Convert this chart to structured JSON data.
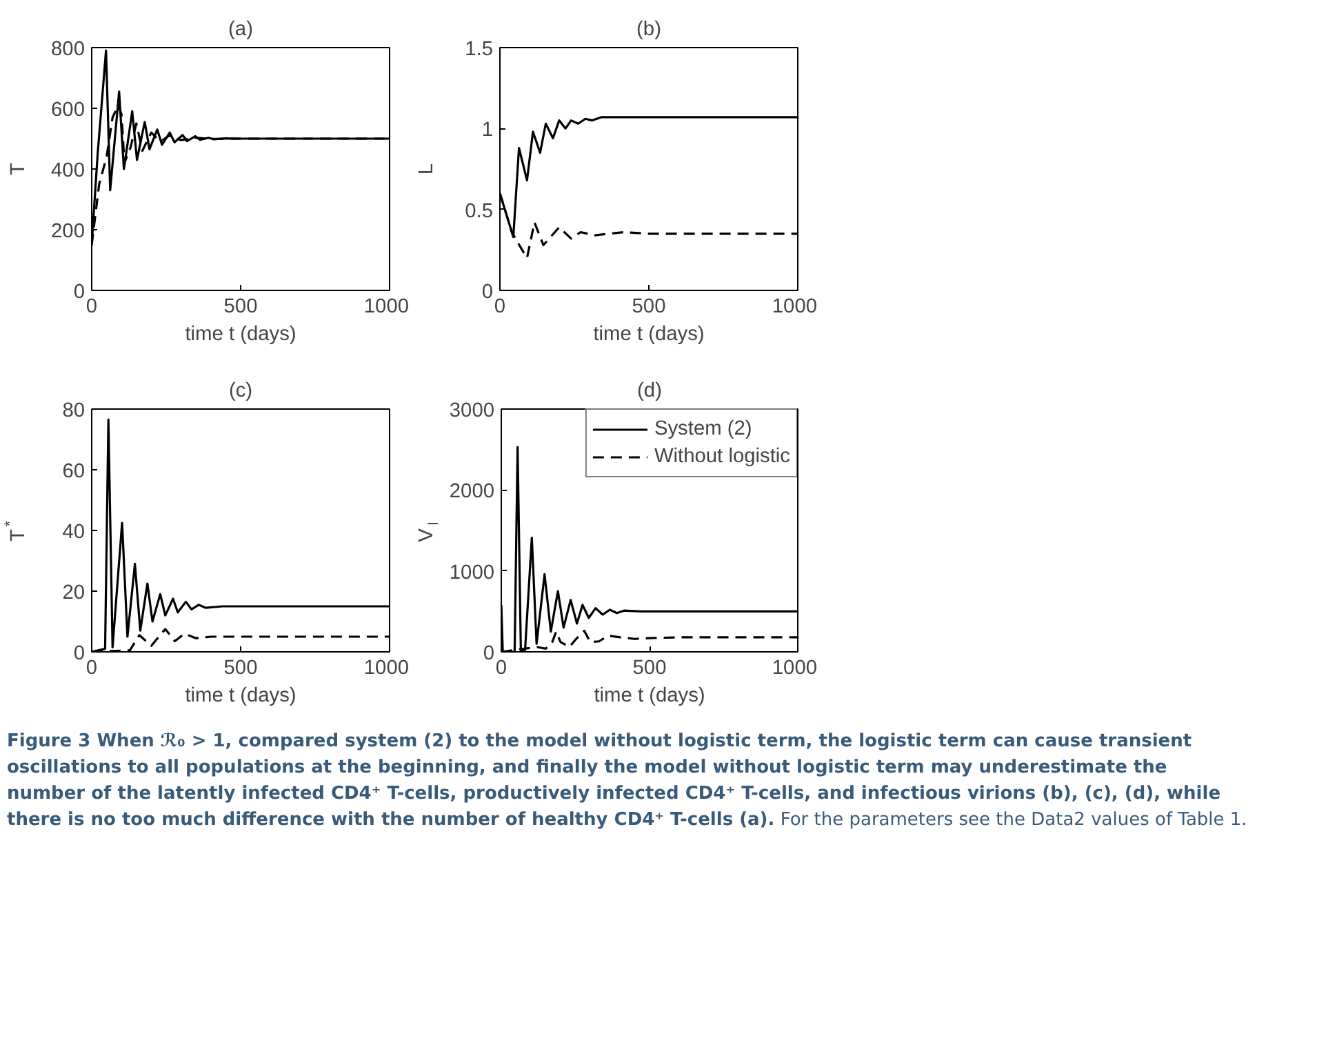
{
  "chart_data": [
    {
      "type": "line",
      "title": "(a)",
      "xlabel": "time t (days)",
      "ylabel": "T",
      "xlim": [
        0,
        1000
      ],
      "xticks": [
        0,
        500,
        1000
      ],
      "ylim": [
        0,
        800
      ],
      "yticks": [
        0,
        200,
        400,
        600,
        800
      ],
      "grid": false,
      "legend": false,
      "series": [
        {
          "color": "#000000",
          "line_style": "solid",
          "x": [
            0,
            20,
            48,
            62,
            92,
            108,
            136,
            152,
            178,
            194,
            220,
            236,
            262,
            278,
            305,
            320,
            348,
            364,
            392,
            410,
            450,
            500,
            1000
          ],
          "values": [
            150,
            450,
            790,
            330,
            655,
            400,
            590,
            430,
            555,
            465,
            530,
            480,
            520,
            488,
            512,
            492,
            508,
            496,
            503,
            498,
            501,
            500,
            500
          ]
        },
        {
          "color": "#000000",
          "line_style": "dashed",
          "x": [
            0,
            25,
            50,
            70,
            90,
            100,
            110,
            130,
            150,
            170,
            200,
            230,
            260,
            300,
            350,
            400,
            500,
            1000
          ],
          "values": [
            150,
            350,
            440,
            570,
            610,
            580,
            420,
            470,
            550,
            460,
            520,
            490,
            510,
            495,
            503,
            499,
            500,
            500
          ]
        }
      ]
    },
    {
      "type": "line",
      "title": "(b)",
      "xlabel": "time t (days)",
      "ylabel": "L",
      "xlim": [
        0,
        1000
      ],
      "xticks": [
        0,
        500,
        1000
      ],
      "ylim": [
        0,
        1.5
      ],
      "yticks": [
        0,
        0.5,
        1,
        1.5
      ],
      "grid": false,
      "legend": false,
      "series": [
        {
          "color": "#000000",
          "line_style": "solid",
          "x": [
            0,
            25,
            45,
            64,
            91,
            111,
            135,
            154,
            178,
            199,
            220,
            239,
            263,
            287,
            310,
            340,
            400,
            1000
          ],
          "values": [
            0.6,
            0.45,
            0.33,
            0.88,
            0.68,
            0.98,
            0.85,
            1.03,
            0.94,
            1.05,
            1.0,
            1.05,
            1.03,
            1.06,
            1.05,
            1.07,
            1.07,
            1.07
          ]
        },
        {
          "color": "#000000",
          "line_style": "dashed",
          "x": [
            0,
            40,
            65,
            91,
            116,
            146,
            199,
            239,
            271,
            318,
            414,
            500,
            1000
          ],
          "values": [
            0.6,
            0.36,
            0.28,
            0.2,
            0.42,
            0.28,
            0.39,
            0.32,
            0.36,
            0.34,
            0.36,
            0.35,
            0.35
          ]
        }
      ]
    },
    {
      "type": "line",
      "title": "(c)",
      "xlabel": "time t (days)",
      "ylabel": "T$^{*}$",
      "xlim": [
        0,
        1000
      ],
      "xticks": [
        0,
        500,
        1000
      ],
      "ylim": [
        0,
        80
      ],
      "yticks": [
        0,
        20,
        40,
        60,
        80
      ],
      "grid": false,
      "legend": false,
      "series": [
        {
          "color": "#000000",
          "line_style": "solid",
          "x": [
            0,
            45,
            56,
            70,
            102,
            120,
            145,
            163,
            187,
            204,
            230,
            247,
            273,
            289,
            316,
            335,
            359,
            383,
            439,
            1000
          ],
          "values": [
            0,
            1,
            76.5,
            1.5,
            42.5,
            5,
            29,
            7,
            22.5,
            10,
            19,
            12,
            17.5,
            13,
            16.5,
            14,
            15.5,
            14.5,
            15,
            15
          ]
        },
        {
          "color": "#000000",
          "line_style": "dashed",
          "x": [
            0,
            128,
            160,
            200,
            247,
            279,
            311,
            350,
            400,
            500,
            1000
          ],
          "values": [
            0,
            0.5,
            5.5,
            2,
            7.5,
            3.5,
            6,
            4.5,
            5,
            5,
            5
          ]
        }
      ]
    },
    {
      "type": "line",
      "title": "(d)",
      "xlabel": "time t (days)",
      "ylabel": "V$_{I}$",
      "xlim": [
        0,
        1000
      ],
      "xticks": [
        0,
        500,
        1000
      ],
      "ylim": [
        0,
        3000
      ],
      "yticks": [
        0,
        1000,
        2000,
        3000
      ],
      "grid": false,
      "legend": "top right",
      "annotations": [
        "Figure 3  When ℛ₀ > 1, compared system (2) to the model without logistic term, the logistic term can cause transient oscillations to all populations at the beginning, and finally the model without logistic term may underestimate the number of the latently infected CD4⁺ T-cells, productively infected CD4⁺ T-cells, and infectious virions (b), (c), (d), while there is no too much difference with the number of healthy CD4⁺ T-cells (a).",
        "For the parameters see the Data2 values of Table 1."
      ],
      "series": [
        {
          "name": "System (2)",
          "color": "#000000",
          "line_style": "solid",
          "x": [
            0,
            5,
            45,
            55,
            66,
            80,
            103,
            119,
            146,
            167,
            191,
            210,
            234,
            255,
            274,
            295,
            318,
            342,
            366,
            390,
            414,
            470,
            1000
          ],
          "values": [
            580,
            0,
            0,
            2530,
            20,
            10,
            1410,
            100,
            960,
            250,
            750,
            300,
            640,
            350,
            580,
            420,
            540,
            460,
            520,
            480,
            510,
            500,
            500
          ]
        },
        {
          "name": "Without logistic",
          "color": "#000000",
          "line_style": "dashed",
          "x": [
            0,
            120,
            150,
            170,
            185,
            200,
            230,
            250,
            280,
            300,
            330,
            360,
            400,
            450,
            500,
            600,
            1000
          ],
          "values": [
            0,
            60,
            40,
            100,
            250,
            120,
            60,
            150,
            260,
            120,
            130,
            200,
            180,
            160,
            170,
            180,
            180
          ]
        }
      ]
    }
  ]
}
